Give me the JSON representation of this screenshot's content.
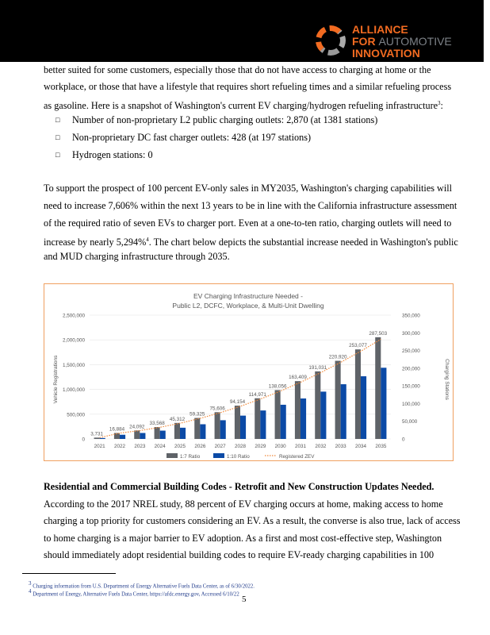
{
  "header": {
    "logo": {
      "line1": "ALLIANCE",
      "line2a": "FOR",
      "line2b": "AUTOMOTIVE",
      "line3": "INNOVATION"
    },
    "colors": {
      "brand": "#f26b21",
      "gray": "#7d8288"
    }
  },
  "intro": [
    "better suited for some customers, especially those that do not have access to charging at home or the",
    "workplace, or those that have a lifestyle that requires short refueling times and a similar refueling process",
    "as gasoline. Here is a snapshot of Washington's current EV charging/hydrogen refueling infrastructure"
  ],
  "intro_sup": "3",
  "bullets": [
    "Number of non-proprietary L2 public charging outlets: 2,870 (at 1381 stations)",
    "Non-proprietary DC fast charger outlets: 428 (at 197 stations)",
    "Hydrogen stations: 0"
  ],
  "bullet_icon": "square-bullet-icon",
  "para2": [
    "To support the prospect of 100 percent EV-only sales in MY2035, Washington's charging capabilities will",
    "need to increase 7,606% within the next 13 years to be in line with the California infrastructure assessment",
    "of the required ratio of seven EVs to charger port. Even at a one-to-ten ratio, charging outlets will need to",
    "increase by nearly 5,294%",
    "and MUD charging infrastructure through 2035."
  ],
  "para2_sup": "4",
  "para2_line4_rest": ". The chart below depicts the substantial increase needed in Washington's public",
  "chart_data": {
    "type": "bar",
    "title": "EV Charging Infrastructure Needed -",
    "subtitle": "Public L2, DCFC, Workplace, & Multi-Unit Dwelling",
    "categories": [
      "2021",
      "2022",
      "2023",
      "2024",
      "2025",
      "2026",
      "2027",
      "2028",
      "2029",
      "2030",
      "2031",
      "2032",
      "2033",
      "2034",
      "2035"
    ],
    "ylabel": "Vehicle Registrations",
    "ylabel_right": "Charging Stations",
    "ylim": [
      0,
      2500000
    ],
    "ylim_right": [
      0,
      350000
    ],
    "yticks": [
      "0",
      "500,000",
      "1,000,000",
      "1,500,000",
      "2,000,000",
      "2,500,000"
    ],
    "yticks_right": [
      "0",
      "50,000",
      "100,000",
      "150,000",
      "200,000",
      "250,000",
      "300,000",
      "350,000"
    ],
    "series": [
      {
        "name": "1:7 Ratio",
        "axis": "right",
        "color": "#5f6368",
        "values": [
          3731,
          16884,
          24092,
          33568,
          45312,
          59325,
          75606,
          94154,
          114971,
          138056,
          163409,
          191031,
          220920,
          253077,
          287503
        ]
      },
      {
        "name": "1:10 Ratio",
        "axis": "right",
        "color": "#0b4aa6",
        "values": [
          2612,
          11819,
          16864,
          23498,
          31718,
          41528,
          52924,
          65908,
          80480,
          96639,
          114386,
          133722,
          154644,
          177154,
          201252
        ]
      },
      {
        "name": "Registered ZEV",
        "axis": "left",
        "type": "line",
        "style": "dotted",
        "color": "#f08a3c",
        "values": [
          26117,
          118188,
          168644,
          234976,
          317184,
          415275,
          529242,
          659078,
          804797,
          966392,
          1143863,
          1337217,
          1546440,
          1771539,
          2012521
        ]
      }
    ],
    "data_labels": [
      "3,731",
      "16,884",
      "24,092",
      "33,568",
      "45,312",
      "59,325",
      "75,606",
      "94,154",
      "114,971",
      "138,056",
      "163,409",
      "191,031",
      "220,920",
      "253,077",
      "287,503"
    ],
    "legend": "bottom",
    "grid": true
  },
  "section": {
    "heading": "Residential and Commercial Building Codes - Retrofit and New Construction Updates Needed.",
    "lines": [
      "According to the 2017 NREL study, 88 percent of EV charging occurs at home, making access to home",
      "charging a top priority for customers considering an EV. As a result, the converse is also true, lack of access",
      "to home charging is a major barrier to EV adoption. As a first and most cost-effective step, Washington",
      "should immediately adopt residential building codes to require EV-ready charging capabilities in 100"
    ]
  },
  "footnotes": [
    {
      "num": "3",
      "text": "Charging information from U.S. Department of Energy Alternative Fuels Data Center, as of 6/30/2022."
    },
    {
      "num": "4",
      "text": "Department of Energy, Alternative Fuels Data Center, https://afdc.energy.gov, Accessed 6/10/22"
    }
  ],
  "page_number": "5"
}
